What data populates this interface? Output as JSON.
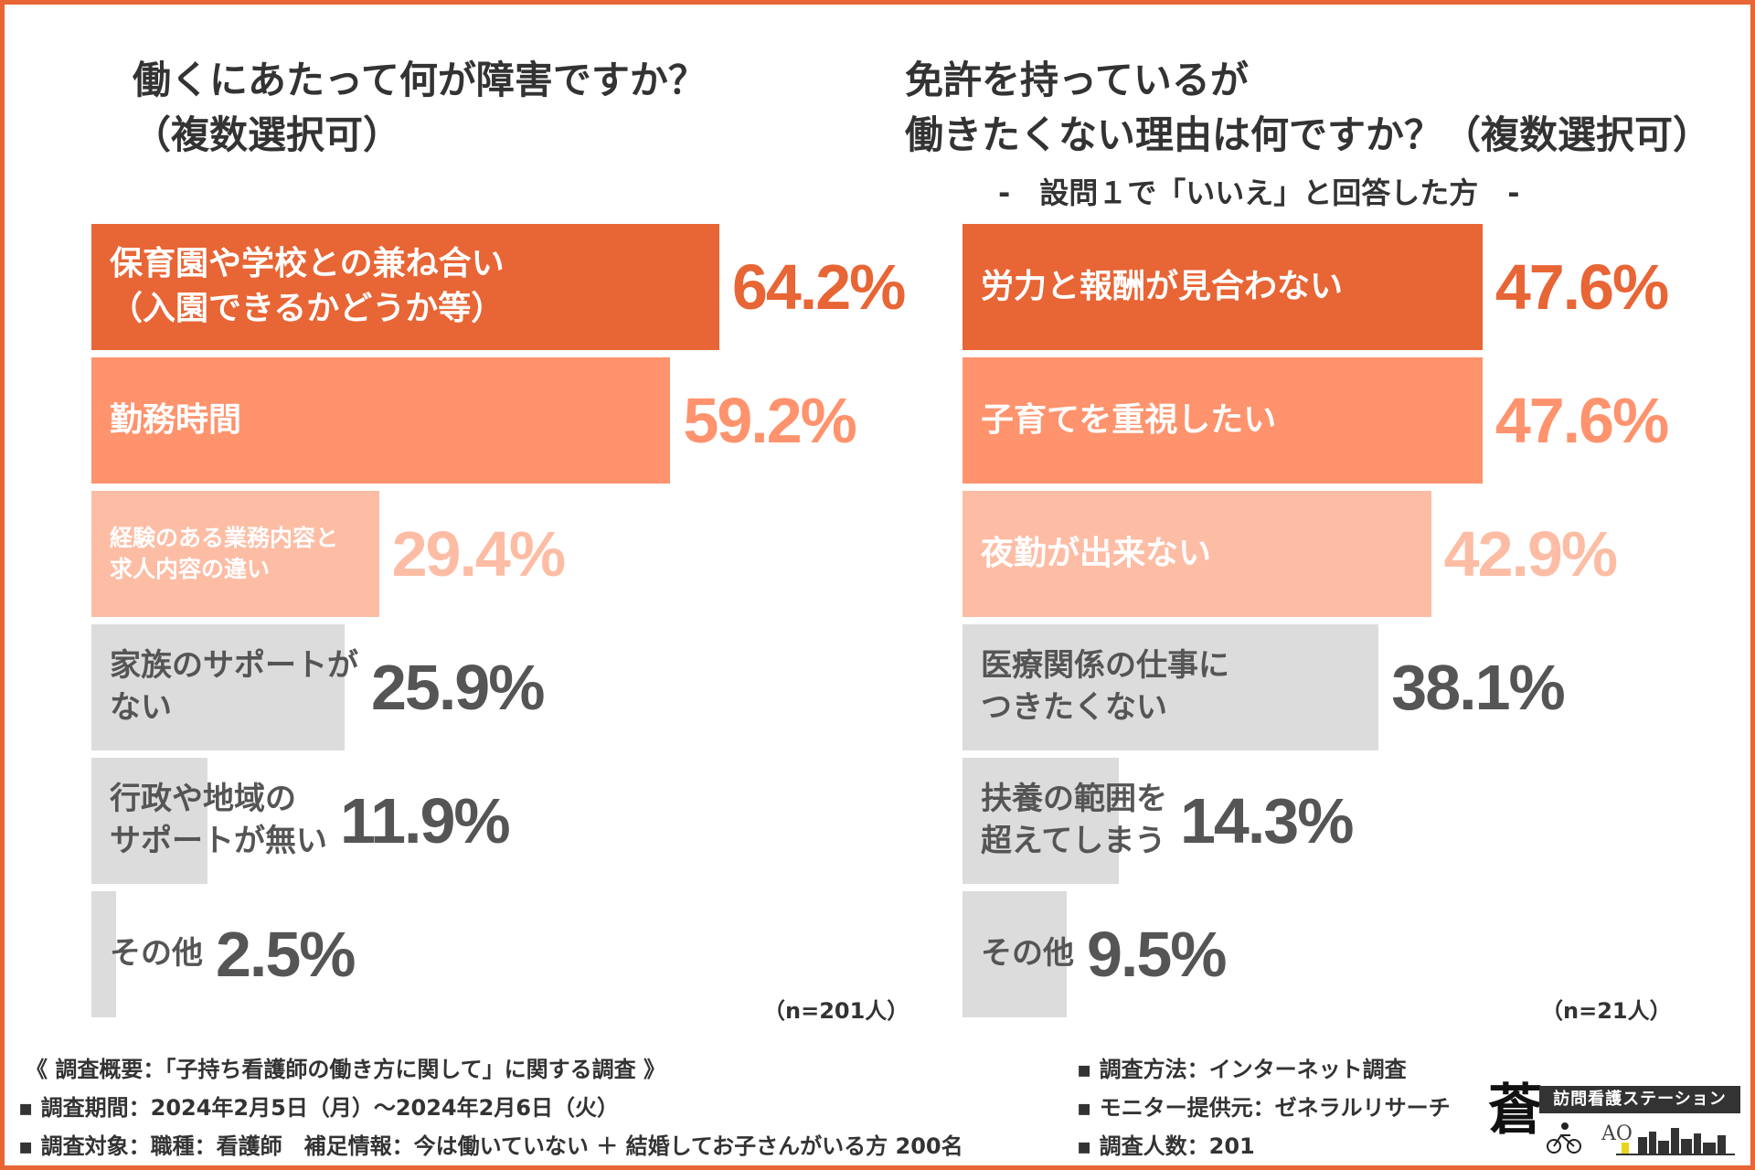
{
  "left": {
    "title_line1": "働くにあたって何が障害ですか？",
    "title_line2": "（複数選択可）",
    "n_label": "（n=201人）"
  },
  "right": {
    "title_line1": "免許を持っているが",
    "title_line2": "働きたくない理由は何ですか？（複数選択可）",
    "subtitle": "-　設問１で「いいえ」と回答した方　-",
    "n_label": "（n=21人）"
  },
  "chart_data": [
    {
      "type": "bar",
      "orientation": "horizontal",
      "title": "働くにあたって何が障害ですか？（複数選択可）",
      "categories": [
        "保育園や学校との兼ね合い\n（入園できるかどうか等）",
        "勤務時間",
        "経験のある業務内容と\n求人内容の違い",
        "家族のサポートが\nない",
        "行政や地域の\nサポートが無い",
        "その他"
      ],
      "values": [
        64.2,
        59.2,
        29.4,
        25.9,
        11.9,
        2.5
      ],
      "value_labels": [
        "64.2%",
        "59.2%",
        "29.4%",
        "25.9%",
        "11.9%",
        "2.5%"
      ],
      "unit": "%",
      "xlim": [
        0,
        100
      ],
      "n": "n=201人",
      "colors": [
        "#e86535",
        "#fe936d",
        "#fdbda5",
        "#dcdcdc",
        "#dcdcdc",
        "#dcdcdc"
      ]
    },
    {
      "type": "bar",
      "orientation": "horizontal",
      "title": "免許を持っているが働きたくない理由は何ですか？（複数選択可）",
      "subtitle": "設問１で「いいえ」と回答した方",
      "categories": [
        "労力と報酬が見合わない",
        "子育てを重視したい",
        "夜勤が出来ない",
        "医療関係の仕事に\nつきたくない",
        "扶養の範囲を\n超えてしまう",
        "その他"
      ],
      "values": [
        47.6,
        47.6,
        42.9,
        38.1,
        14.3,
        9.5
      ],
      "value_labels": [
        "47.6%",
        "47.6%",
        "42.9%",
        "38.1%",
        "14.3%",
        "9.5%"
      ],
      "unit": "%",
      "xlim": [
        0,
        100
      ],
      "n": "n=21人",
      "colors": [
        "#e86535",
        "#fe936d",
        "#fdbda5",
        "#dcdcdc",
        "#dcdcdc",
        "#dcdcdc"
      ]
    }
  ],
  "footer": {
    "summary": "《 調査概要：「子持ち看護師の働き方に関して」に関する調査 》",
    "period": "▪ 調査期間：2024年2月5日（月）～2024年2月6日（火）",
    "target": "▪ 調査対象：職種：看護師　補足情報：今は働いていない ＋ 結婚してお子さんがいる方 200名",
    "method": "▪ 調査方法：インターネット調査",
    "provider": "▪ モニター提供元：ゼネラルリサーチ",
    "count": "▪ 調査人数：201"
  },
  "logo": {
    "kanji": "蒼",
    "banner": "訪問看護ステーション",
    "ao": "AO"
  },
  "colors": {
    "frame": "#e86535",
    "dark_text": "#333333"
  }
}
